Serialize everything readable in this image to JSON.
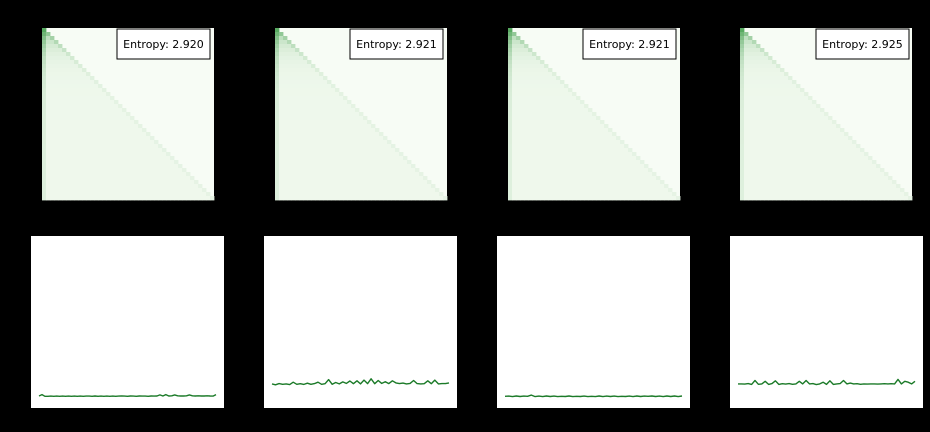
{
  "background": "#000000",
  "heatmap_style": {
    "high_color": "#3f9d4a",
    "low_color": "#f4fbf1",
    "outer_color": "#f7fcf5"
  },
  "line_color": "#1b7a28",
  "chart_data": [
    {
      "type": "heatmap",
      "panel": "top-1",
      "annotation": "Entropy: 2.920",
      "grid": false
    },
    {
      "type": "heatmap",
      "panel": "top-2",
      "annotation": "Entropy: 2.921",
      "grid": false
    },
    {
      "type": "heatmap",
      "panel": "top-3",
      "annotation": "Entropy: 2.921",
      "grid": false
    },
    {
      "type": "heatmap",
      "panel": "top-4",
      "annotation": "Entropy: 2.925",
      "grid": false
    },
    {
      "type": "line",
      "panel": "bottom-1",
      "ylim": [
        0,
        1
      ],
      "grid": false,
      "values": [
        0.07,
        0.078,
        0.068,
        0.068,
        0.069,
        0.068,
        0.069,
        0.068,
        0.069,
        0.068,
        0.069,
        0.068,
        0.069,
        0.068,
        0.069,
        0.068,
        0.069,
        0.069,
        0.068,
        0.07,
        0.068,
        0.069,
        0.068,
        0.069,
        0.068,
        0.069,
        0.068,
        0.069,
        0.07,
        0.069,
        0.068,
        0.07,
        0.069,
        0.068,
        0.07,
        0.069,
        0.069,
        0.068,
        0.07,
        0.069,
        0.07,
        0.076,
        0.07,
        0.078,
        0.07,
        0.071,
        0.076,
        0.071,
        0.07,
        0.07,
        0.071,
        0.076,
        0.071,
        0.07,
        0.071,
        0.07,
        0.07,
        0.071,
        0.07,
        0.069,
        0.078
      ]
    },
    {
      "type": "line",
      "panel": "bottom-2",
      "ylim": [
        0,
        1
      ],
      "grid": false,
      "values": [
        0.14,
        0.135,
        0.142,
        0.138,
        0.14,
        0.136,
        0.15,
        0.138,
        0.141,
        0.137,
        0.144,
        0.138,
        0.142,
        0.15,
        0.138,
        0.141,
        0.165,
        0.138,
        0.148,
        0.14,
        0.152,
        0.143,
        0.157,
        0.141,
        0.158,
        0.14,
        0.162,
        0.142,
        0.17,
        0.141,
        0.16,
        0.143,
        0.153,
        0.142,
        0.158,
        0.146,
        0.142,
        0.145,
        0.14,
        0.143,
        0.16,
        0.142,
        0.14,
        0.141,
        0.158,
        0.141,
        0.162,
        0.14,
        0.142,
        0.142,
        0.146
      ]
    },
    {
      "type": "line",
      "panel": "bottom-3",
      "ylim": [
        0,
        1
      ],
      "grid": false,
      "values": [
        0.068,
        0.069,
        0.066,
        0.07,
        0.067,
        0.069,
        0.068,
        0.075,
        0.066,
        0.069,
        0.066,
        0.07,
        0.067,
        0.069,
        0.066,
        0.068,
        0.067,
        0.07,
        0.066,
        0.068,
        0.067,
        0.069,
        0.066,
        0.068,
        0.066,
        0.07,
        0.066,
        0.069,
        0.067,
        0.069,
        0.066,
        0.068,
        0.067,
        0.069,
        0.066,
        0.07,
        0.067,
        0.069,
        0.068,
        0.07,
        0.067,
        0.069,
        0.066,
        0.07,
        0.067,
        0.07,
        0.066,
        0.07
      ]
    },
    {
      "type": "line",
      "panel": "bottom-4",
      "ylim": [
        0,
        1
      ],
      "grid": false,
      "values": [
        0.14,
        0.14,
        0.139,
        0.142,
        0.137,
        0.16,
        0.138,
        0.14,
        0.155,
        0.137,
        0.142,
        0.158,
        0.137,
        0.141,
        0.139,
        0.142,
        0.138,
        0.14,
        0.155,
        0.14,
        0.16,
        0.14,
        0.142,
        0.136,
        0.14,
        0.15,
        0.137,
        0.158,
        0.137,
        0.14,
        0.142,
        0.16,
        0.14,
        0.145,
        0.14,
        0.141,
        0.138,
        0.14,
        0.139,
        0.14,
        0.14,
        0.139,
        0.14,
        0.141,
        0.14,
        0.141,
        0.14,
        0.166,
        0.14,
        0.155,
        0.15,
        0.14,
        0.155
      ]
    }
  ]
}
